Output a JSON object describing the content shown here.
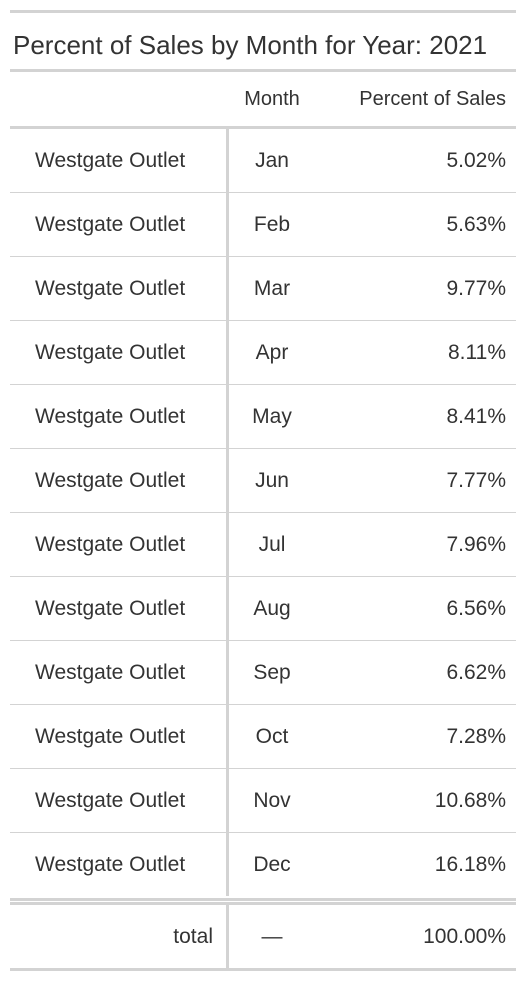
{
  "table": {
    "title": "Percent of Sales by Month for Year: 2021",
    "columns": {
      "stub": "",
      "month": "Month",
      "percent": "Percent of Sales"
    },
    "rows": [
      {
        "store": "Westgate Outlet",
        "month": "Jan",
        "percent": "5.02%"
      },
      {
        "store": "Westgate Outlet",
        "month": "Feb",
        "percent": "5.63%"
      },
      {
        "store": "Westgate Outlet",
        "month": "Mar",
        "percent": "9.77%"
      },
      {
        "store": "Westgate Outlet",
        "month": "Apr",
        "percent": "8.11%"
      },
      {
        "store": "Westgate Outlet",
        "month": "May",
        "percent": "8.41%"
      },
      {
        "store": "Westgate Outlet",
        "month": "Jun",
        "percent": "7.77%"
      },
      {
        "store": "Westgate Outlet",
        "month": "Jul",
        "percent": "7.96%"
      },
      {
        "store": "Westgate Outlet",
        "month": "Aug",
        "percent": "6.56%"
      },
      {
        "store": "Westgate Outlet",
        "month": "Sep",
        "percent": "6.62%"
      },
      {
        "store": "Westgate Outlet",
        "month": "Oct",
        "percent": "7.28%"
      },
      {
        "store": "Westgate Outlet",
        "month": "Nov",
        "percent": "10.68%"
      },
      {
        "store": "Westgate Outlet",
        "month": "Dec",
        "percent": "16.18%"
      }
    ],
    "summary": {
      "label": "total",
      "month": "—",
      "percent": "100.00%"
    },
    "colors": {
      "rule": "#d3d3d3",
      "text": "#333333"
    }
  }
}
